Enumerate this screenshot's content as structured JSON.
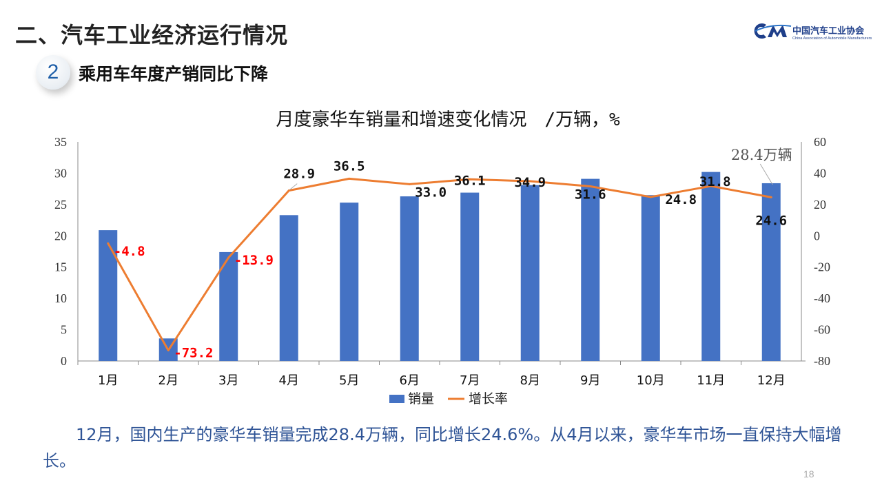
{
  "header": {
    "section_title": "二、汽车工业经济运行情况",
    "section_number": "2",
    "subtitle": "乘用车年度产销同比下降"
  },
  "logo": {
    "name_cn": "中国汽车工业协会",
    "name_en": "China Association of Automobile Manufacturers"
  },
  "caption": "12月，国内生产的豪华车销量完成28.4万辆，同比增长24.6%。从4月以来，豪华车市场一直保持大幅增长。",
  "page_number": "18",
  "colors": {
    "bar": "#4472c4",
    "line": "#ed7d31",
    "negative_label": "#ff0000",
    "caption": "#2f5496"
  },
  "chart_data": {
    "type": "bar",
    "title": "月度豪华车销量和增速变化情况　/万辆，%",
    "categories": [
      "1月",
      "2月",
      "3月",
      "4月",
      "5月",
      "6月",
      "7月",
      "8月",
      "9月",
      "10月",
      "11月",
      "12月"
    ],
    "series": [
      {
        "name": "销量",
        "type": "bar",
        "axis": "left",
        "values": [
          20.9,
          3.6,
          17.4,
          23.3,
          25.3,
          26.3,
          26.9,
          28.1,
          29.1,
          26.5,
          30.2,
          28.4
        ]
      },
      {
        "name": "增长率",
        "type": "line",
        "axis": "right",
        "values": [
          -4.8,
          -73.2,
          -13.9,
          28.9,
          36.5,
          33.0,
          36.1,
          34.9,
          31.6,
          24.8,
          31.8,
          24.6
        ],
        "labels": [
          "-4.8",
          "-73.2",
          "-13.9",
          "28.9",
          "36.5",
          "33.0",
          "36.1",
          "34.9",
          "31.6",
          "24.8",
          "31.8",
          "24.6"
        ]
      }
    ],
    "y_left": {
      "min": 0,
      "max": 35,
      "ticks": [
        "0",
        "5",
        "10",
        "15",
        "20",
        "25",
        "30",
        "35"
      ]
    },
    "y_right": {
      "min": -80,
      "max": 60,
      "ticks": [
        "-80",
        "-60",
        "-40",
        "-20",
        "0",
        "20",
        "40",
        "60"
      ]
    },
    "annotation": "28.4万辆",
    "legend_position": "bottom",
    "grid": false
  }
}
